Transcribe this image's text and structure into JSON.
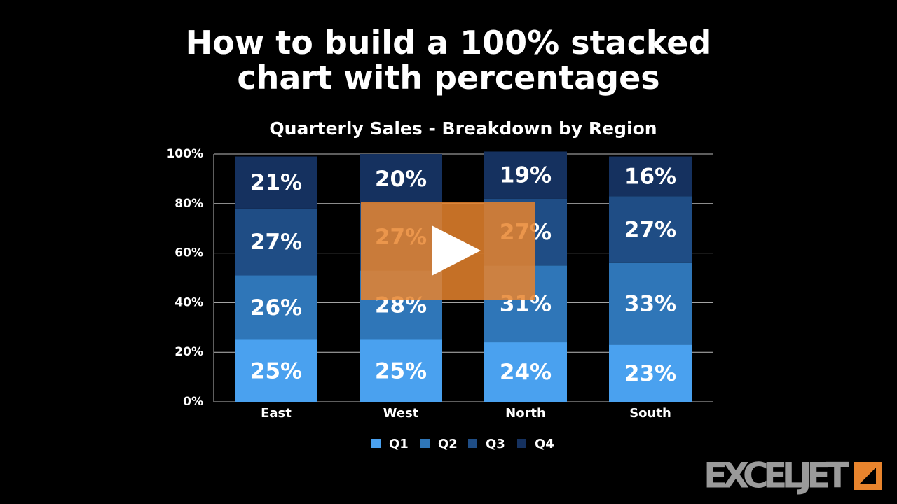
{
  "title": "How to build a 100% stacked chart with percentages",
  "logo": "EXCELJET",
  "chart_data": {
    "type": "stacked_bar",
    "title": "Quarterly Sales - Breakdown by Region",
    "categories": [
      "East",
      "West",
      "North",
      "South"
    ],
    "series": [
      {
        "name": "Q1",
        "color": "#4aa1ef",
        "values": [
          25,
          25,
          24,
          23
        ],
        "value_labels": [
          "25%",
          "25%",
          "24%",
          "23%"
        ]
      },
      {
        "name": "Q2",
        "color": "#2f76b8",
        "values": [
          26,
          28,
          31,
          33
        ],
        "value_labels": [
          "26%",
          "28%",
          "31%",
          "33%"
        ]
      },
      {
        "name": "Q3",
        "color": "#1f4d85",
        "values": [
          27,
          27,
          27,
          27
        ],
        "value_labels": [
          "27%",
          "27%",
          "27%",
          "27%"
        ]
      },
      {
        "name": "Q4",
        "color": "#15315f",
        "values": [
          21,
          20,
          19,
          16
        ],
        "value_labels": [
          "21%",
          "20%",
          "19%",
          "16%"
        ]
      }
    ],
    "ylim": [
      0,
      100
    ],
    "yticks": [
      {
        "value": 0,
        "label": "0%"
      },
      {
        "value": 20,
        "label": "20%"
      },
      {
        "value": 40,
        "label": "40%"
      },
      {
        "value": 60,
        "label": "60%"
      },
      {
        "value": 80,
        "label": "80%"
      },
      {
        "value": 100,
        "label": "100%"
      }
    ],
    "grid": true,
    "legend": "bottom"
  }
}
